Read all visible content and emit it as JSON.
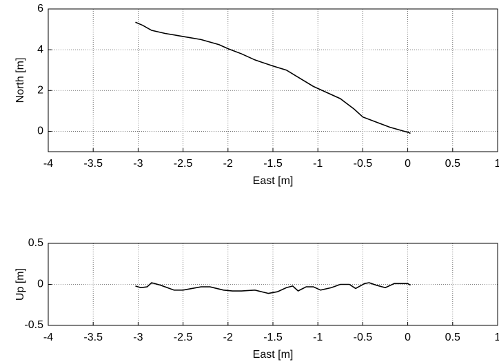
{
  "chart_data": [
    {
      "type": "line",
      "xlabel": "East [m]",
      "ylabel": "North [m]",
      "color": "#000000",
      "grid": true,
      "x": [
        -3.03,
        -2.95,
        -2.85,
        -2.7,
        -2.5,
        -2.3,
        -2.1,
        -2.0,
        -1.85,
        -1.7,
        -1.5,
        -1.35,
        -1.2,
        -1.05,
        -0.9,
        -0.75,
        -0.6,
        -0.5,
        -0.35,
        -0.2,
        0,
        0.03
      ],
      "values": [
        5.35,
        5.2,
        4.95,
        4.8,
        4.65,
        4.5,
        4.25,
        4.05,
        3.8,
        3.5,
        3.2,
        3.0,
        2.6,
        2.2,
        1.9,
        1.6,
        1.1,
        0.7,
        0.45,
        0.2,
        -0.05,
        -0.1
      ],
      "xlim": [
        -4,
        1
      ],
      "xticks": [
        -4,
        -3.5,
        -3,
        -2.5,
        -2,
        -1.5,
        -1,
        -0.5,
        0,
        0.5,
        1
      ],
      "ylim": [
        -1,
        6
      ],
      "yticks": [
        0,
        2,
        4,
        6
      ]
    },
    {
      "type": "line",
      "xlabel": "East [m]",
      "ylabel": "Up [m]",
      "color": "#000000",
      "grid": true,
      "x": [
        -3.03,
        -2.97,
        -2.9,
        -2.85,
        -2.75,
        -2.6,
        -2.5,
        -2.3,
        -2.2,
        -2.05,
        -1.95,
        -1.85,
        -1.7,
        -1.55,
        -1.45,
        -1.35,
        -1.28,
        -1.22,
        -1.13,
        -1.05,
        -0.97,
        -0.85,
        -0.75,
        -0.65,
        -0.58,
        -0.48,
        -0.43,
        -0.35,
        -0.25,
        -0.15,
        0,
        0.03
      ],
      "values": [
        -0.02,
        -0.04,
        -0.03,
        0.02,
        -0.01,
        -0.07,
        -0.07,
        -0.03,
        -0.03,
        -0.07,
        -0.08,
        -0.08,
        -0.07,
        -0.11,
        -0.09,
        -0.04,
        -0.02,
        -0.08,
        -0.03,
        -0.03,
        -0.07,
        -0.04,
        0.0,
        0.0,
        -0.05,
        0.01,
        0.02,
        -0.01,
        -0.04,
        0.01,
        0.01,
        -0.01
      ],
      "xlim": [
        -4,
        1
      ],
      "xticks": [
        -4,
        -3.5,
        -3,
        -2.5,
        -2,
        -1.5,
        -1,
        -0.5,
        0,
        0.5,
        1
      ],
      "ylim": [
        -0.5,
        0.5
      ],
      "yticks": [
        -0.5,
        0,
        0.5
      ]
    }
  ]
}
